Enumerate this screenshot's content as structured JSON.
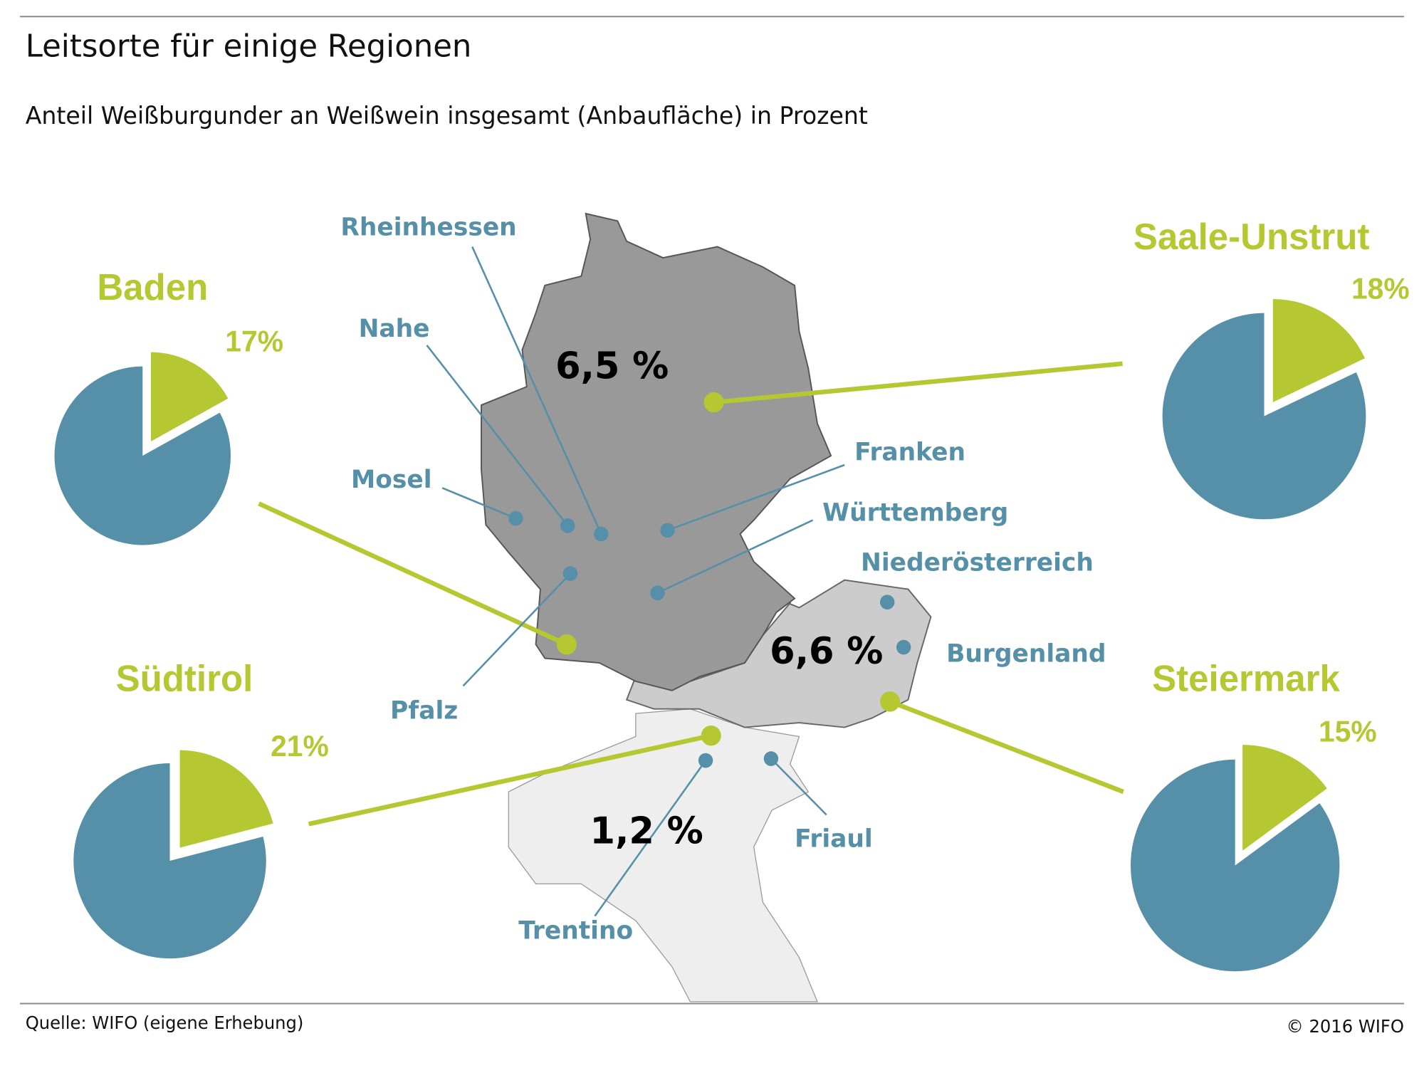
{
  "header": {
    "title": "Leitsorte für einige Regionen",
    "subtitle": "Anteil Weißburgunder an Weißwein insgesamt (Anbaufläche) in Prozent"
  },
  "countries": [
    {
      "label": "6,5 %"
    },
    {
      "label": "6,6 %"
    },
    {
      "label": "1,2 %"
    }
  ],
  "regions": [
    "Rheinhessen",
    "Nahe",
    "Mosel",
    "Pfalz",
    "Franken",
    "Württemberg",
    "Niederösterreich",
    "Burgenland",
    "Trentino",
    "Friaul"
  ],
  "pies": [
    {
      "name": "Baden",
      "value": 17,
      "value_label": "17%"
    },
    {
      "name": "Saale-Unstrut",
      "value": 18,
      "value_label": "18%"
    },
    {
      "name": "Südtirol",
      "value": 21,
      "value_label": "21%"
    },
    {
      "name": "Steiermark",
      "value": 15,
      "value_label": "15%"
    }
  ],
  "colors": {
    "share": "#b5c832",
    "rest": "#5590a8"
  },
  "footer": {
    "source": "Quelle:  WIFO (eigene Erhebung)",
    "copyright": "© 2016 WIFO"
  }
}
